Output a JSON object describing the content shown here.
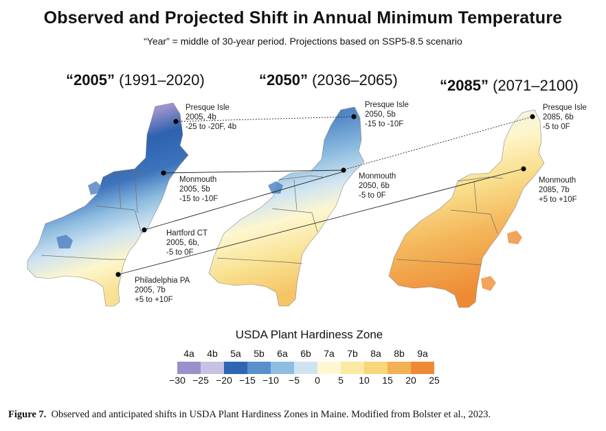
{
  "title": "Observed and Projected Shift in Annual Minimum Temperature",
  "subtitle": "“Year” = middle of 30-year period.  Projections based on SSP5-8.5 scenario",
  "panels": [
    {
      "year": "“2005”",
      "range": "(1991–2020)"
    },
    {
      "year": "“2050”",
      "range": "(2036–2065)"
    },
    {
      "year": "“2085”",
      "range": "(2071–2100)"
    }
  ],
  "labels": {
    "p1_presque": [
      "Presque Isle",
      "2005, 4b",
      "-25 to -20F, 4b"
    ],
    "p1_monmouth": [
      "Monmouth",
      "2005, 5b",
      "-15 to -10F"
    ],
    "p1_hartford": [
      "Hartford CT",
      "2005, 6b,",
      "-5 to 0F"
    ],
    "p1_philly": [
      "Philadelphia PA",
      "2005, 7b",
      "+5 to +10F"
    ],
    "p2_presque": [
      "Presque Isle",
      "2050, 5b",
      "-15 to -10F"
    ],
    "p2_monmouth": [
      "Monmouth",
      "2050, 6b",
      "-5 to 0F"
    ],
    "p3_presque": [
      "Presque Isle",
      "2085, 6b",
      "-5 to 0F"
    ],
    "p3_monmouth": [
      "Monmouth",
      "2085, 7b",
      "+5 to +10F"
    ]
  },
  "legend": {
    "title": "USDA Plant Hardiness Zone",
    "zones": [
      "4a",
      "4b",
      "5a",
      "5b",
      "6a",
      "6b",
      "7a",
      "7b",
      "8a",
      "8b",
      "9a"
    ],
    "colors": [
      "#9b90c9",
      "#c8c2e2",
      "#2f66b3",
      "#5a8fcc",
      "#8ebde0",
      "#cfe3f1",
      "#fdf8d2",
      "#fbeaa3",
      "#f8d67b",
      "#f4b055",
      "#ee8a34"
    ],
    "ticks": [
      "−30",
      "−25",
      "−20",
      "−15",
      "−10",
      "−5",
      "0",
      "5",
      "10",
      "15",
      "20",
      "25"
    ]
  },
  "caption": {
    "label": "Figure 7.",
    "text": "Observed and anticipated shifts in USDA Plant Hardiness Zones in Maine. Modified from Bolster et al., 2023."
  }
}
